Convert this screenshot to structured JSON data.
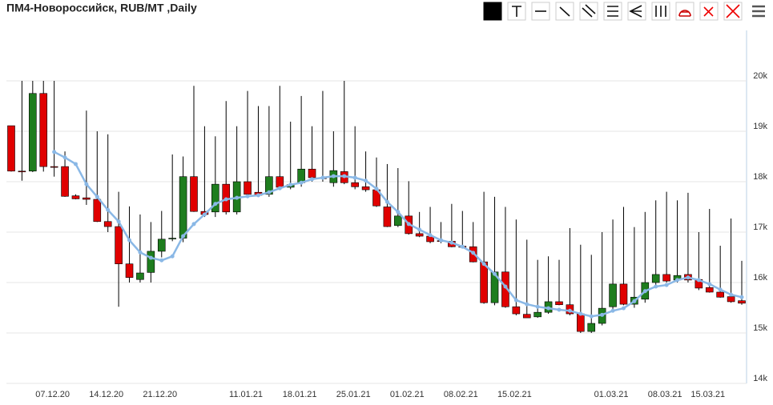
{
  "chart_data": {
    "type": "candlestick",
    "title": "ПМ4-Новороссийск, RUB/MT ,Daily",
    "categories": [
      null,
      null,
      null,
      null,
      "07.12.20",
      null,
      null,
      null,
      null,
      "14.12.20",
      null,
      null,
      null,
      null,
      "21.12.20",
      null,
      null,
      null,
      null,
      null,
      null,
      null,
      "11.01.21",
      null,
      null,
      null,
      null,
      "18.01.21",
      null,
      null,
      null,
      null,
      "25.01.21",
      null,
      null,
      null,
      null,
      "01.02.21",
      null,
      null,
      null,
      null,
      "08.02.21",
      null,
      null,
      null,
      null,
      "15.02.21",
      null,
      null,
      null,
      null,
      null,
      null,
      null,
      null,
      "01.03.21",
      null,
      null,
      null,
      null,
      "08.03.21",
      null,
      null,
      null,
      "15.03.21",
      null,
      null,
      null
    ],
    "open": [
      19110,
      18210,
      18210,
      19750,
      18300,
      18300,
      17720,
      17680,
      17650,
      17210,
      17110,
      16370,
      16060,
      16200,
      16620,
      16870,
      16880,
      18100,
      17410,
      17400,
      17950,
      17400,
      18000,
      17790,
      17750,
      18100,
      17890,
      17980,
      18250,
      18080,
      17980,
      18200,
      17980,
      17900,
      17840,
      17500,
      17130,
      17320,
      16970,
      16920,
      16830,
      16820,
      16720,
      16710,
      16410,
      15600,
      16210,
      15520,
      15370,
      15320,
      15410,
      15620,
      15560,
      15380,
      15030,
      15190,
      15520,
      15970,
      15570,
      15670,
      16000,
      16160,
      16050,
      16160,
      16060,
      15900,
      15810,
      15720,
      15640
    ],
    "high": [
      19110,
      20000,
      20000,
      20000,
      20000,
      18600,
      17750,
      19410,
      19000,
      18940,
      17800,
      17510,
      17350,
      17200,
      17420,
      18540,
      18500,
      19900,
      19100,
      18900,
      19600,
      19100,
      19800,
      19500,
      19500,
      19900,
      19190,
      19700,
      19100,
      19800,
      19000,
      20000,
      19100,
      18600,
      18480,
      18350,
      18270,
      18010,
      17400,
      17500,
      17200,
      17560,
      17420,
      17200,
      17800,
      17700,
      17500,
      17250,
      16850,
      16450,
      16520,
      16450,
      17080,
      16750,
      16550,
      17000,
      17250,
      17500,
      17100,
      17400,
      17630,
      17800,
      17630,
      17780,
      17000,
      17460,
      16730,
      17270,
      16430
    ],
    "low": [
      18200,
      18020,
      18190,
      18200,
      18100,
      17700,
      17650,
      17540,
      17200,
      17000,
      15520,
      16000,
      16000,
      16000,
      16500,
      16820,
      16800,
      17400,
      17300,
      17300,
      17350,
      17350,
      17700,
      17700,
      17700,
      17850,
      17850,
      17900,
      18000,
      18000,
      17900,
      17950,
      17850,
      17800,
      17500,
      17100,
      17100,
      16950,
      16900,
      16780,
      16780,
      16700,
      16690,
      16400,
      15580,
      15550,
      15500,
      15350,
      15300,
      15300,
      15380,
      15550,
      15350,
      15000,
      15000,
      15150,
      15450,
      15550,
      15500,
      15600,
      15950,
      16000,
      16000,
      16000,
      15850,
      15800,
      15700,
      15600,
      15560
    ],
    "close": [
      18210,
      18200,
      19750,
      18300,
      18290,
      17710,
      17660,
      17650,
      17210,
      17110,
      16370,
      16100,
      16190,
      16620,
      16860,
      16880,
      18100,
      17410,
      17350,
      17950,
      17400,
      18000,
      17750,
      17730,
      18100,
      17890,
      17940,
      18250,
      18080,
      18060,
      18220,
      17980,
      17900,
      17840,
      17520,
      17110,
      17320,
      16970,
      16920,
      16810,
      16820,
      16710,
      16700,
      16410,
      15600,
      16210,
      15520,
      15380,
      15300,
      15410,
      15620,
      15560,
      15380,
      15030,
      15190,
      15490,
      15970,
      15570,
      15710,
      16000,
      16160,
      16030,
      16140,
      16050,
      15890,
      15810,
      15710,
      15620,
      15590
    ],
    "up_color": "#1e7d1e",
    "down_color": "#e00000",
    "overlay": {
      "color": "#8ab8e6",
      "values": [
        null,
        null,
        null,
        null,
        18590,
        18480,
        18350,
        17950,
        17700,
        17440,
        17210,
        16840,
        16600,
        16490,
        16440,
        16520,
        16920,
        17160,
        17350,
        17560,
        17650,
        17680,
        17710,
        17730,
        17790,
        17870,
        17940,
        17980,
        18050,
        18080,
        18110,
        18110,
        18080,
        18020,
        17860,
        17600,
        17400,
        17160,
        17050,
        16940,
        16840,
        16790,
        16710,
        16590,
        16370,
        16170,
        15920,
        15650,
        15570,
        15520,
        15490,
        15460,
        15440,
        15380,
        15330,
        15360,
        15440,
        15490,
        15630,
        15830,
        15920,
        15950,
        16050,
        16100,
        16050,
        15970,
        15860,
        15760,
        15710
      ]
    },
    "ylim": [
      14000,
      21000
    ],
    "yticks": [
      {
        "value": 14000,
        "label": "14k"
      },
      {
        "value": 15000,
        "label": "15k"
      },
      {
        "value": 16000,
        "label": "16k"
      },
      {
        "value": 17000,
        "label": "17k"
      },
      {
        "value": 18000,
        "label": "18k"
      },
      {
        "value": 19000,
        "label": "19k"
      },
      {
        "value": 20000,
        "label": "20k"
      }
    ],
    "grid": true
  }
}
